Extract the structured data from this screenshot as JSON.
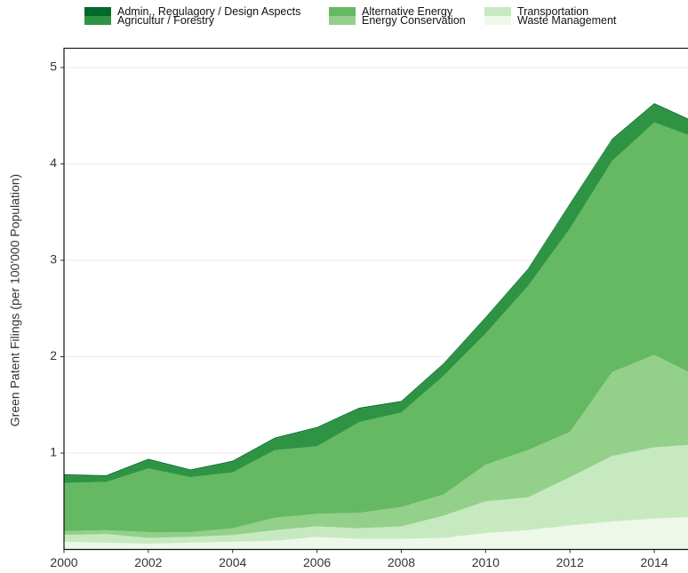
{
  "chart_data": {
    "type": "stacked_area",
    "y_label": "Green Patent Filings (per 100'000 Population)",
    "x": [
      2000,
      2001,
      2002,
      2003,
      2004,
      2005,
      2006,
      2007,
      2008,
      2009,
      2010,
      2011,
      2012,
      2013,
      2014,
      2015
    ],
    "xlim": [
      2000,
      2014.8
    ],
    "xticks": [
      2000,
      2002,
      2004,
      2006,
      2008,
      2010,
      2012,
      2014
    ],
    "ylim": [
      0,
      5.2
    ],
    "yticks": [
      1,
      2,
      3,
      4,
      5
    ],
    "grid": true,
    "legend": "top",
    "series": [
      {
        "name": "Waste Management",
        "color": "#edf8e9",
        "values": [
          0.08,
          0.07,
          0.06,
          0.07,
          0.08,
          0.09,
          0.13,
          0.11,
          0.11,
          0.12,
          0.17,
          0.2,
          0.25,
          0.29,
          0.32,
          0.34
        ]
      },
      {
        "name": "Transportation",
        "color": "#c7e9c0",
        "values": [
          0.07,
          0.09,
          0.06,
          0.06,
          0.07,
          0.11,
          0.11,
          0.11,
          0.13,
          0.23,
          0.33,
          0.34,
          0.5,
          0.68,
          0.74,
          0.75
        ]
      },
      {
        "name": "Energy Conservation",
        "color": "#93d08a",
        "values": [
          0.04,
          0.04,
          0.06,
          0.05,
          0.07,
          0.13,
          0.13,
          0.16,
          0.2,
          0.22,
          0.38,
          0.49,
          0.47,
          0.87,
          0.96,
          0.71
        ]
      },
      {
        "name": "Alternative Energy",
        "color": "#64b962",
        "values": [
          0.5,
          0.5,
          0.66,
          0.57,
          0.58,
          0.7,
          0.7,
          0.94,
          0.98,
          1.23,
          1.36,
          1.7,
          2.11,
          2.19,
          2.41,
          2.47
        ]
      },
      {
        "name": "Agricultur / Forestry",
        "color": "#2e9444",
        "values": [
          0.08,
          0.06,
          0.09,
          0.07,
          0.11,
          0.12,
          0.19,
          0.14,
          0.11,
          0.12,
          0.16,
          0.17,
          0.25,
          0.22,
          0.19,
          0.15
        ]
      },
      {
        "name": "Admin., Regulagory / Design Aspects",
        "color": "#00692a",
        "values": [
          0.01,
          0.01,
          0.01,
          0.01,
          0.01,
          0.01,
          0.01,
          0.01,
          0.01,
          0.01,
          0.01,
          0.01,
          0.01,
          0.01,
          0.01,
          0.01
        ]
      }
    ]
  }
}
